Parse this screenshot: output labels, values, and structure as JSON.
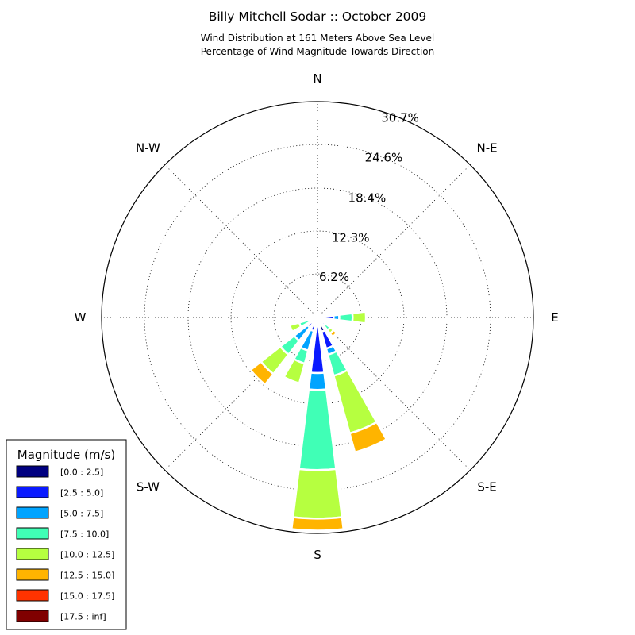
{
  "chart_data": {
    "type": "windrose",
    "title": "Billy Mitchell Sodar :: October 2009",
    "subtitle_line1": "Wind Distribution at 161 Meters Above Sea Level",
    "subtitle_line2": "Percentage of Wind Magnitude Towards Direction",
    "direction_labels": [
      "N",
      "N-E",
      "E",
      "S-E",
      "S",
      "S-W",
      "W",
      "N-W"
    ],
    "radial_max": 30.7,
    "radial_ticks": [
      {
        "value": 6.2,
        "label": "6.2%"
      },
      {
        "value": 12.3,
        "label": "12.3%"
      },
      {
        "value": 18.4,
        "label": "18.4%"
      },
      {
        "value": 24.6,
        "label": "24.6%"
      },
      {
        "value": 30.7,
        "label": "30.7%"
      }
    ],
    "legend_title": "Magnitude (m/s)",
    "bins": [
      {
        "label": "[0.0 : 2.5]",
        "color": "#000080"
      },
      {
        "label": "[2.5 : 5.0]",
        "color": "#0a1aff"
      },
      {
        "label": "[5.0 : 7.5]",
        "color": "#00a4ff"
      },
      {
        "label": "[7.5 : 10.0]",
        "color": "#40ffb6"
      },
      {
        "label": "[10.0 : 12.5]",
        "color": "#b6ff40"
      },
      {
        "label": "[12.5 : 15.0]",
        "color": "#ffb400"
      },
      {
        "label": "[15.0 : 17.5]",
        "color": "#ff3300"
      },
      {
        "label": "[17.5 : inf]",
        "color": "#800000"
      }
    ],
    "directions_deg": [
      0,
      22.5,
      45,
      67.5,
      90,
      112.5,
      135,
      157.5,
      180,
      202.5,
      225,
      247.5,
      270,
      292.5,
      315,
      337.5
    ],
    "cumulative_percent": [
      [
        0.2,
        0.3,
        0.3,
        0.3,
        0.3,
        0.3,
        0.3,
        0.3
      ],
      [
        0.2,
        0.3,
        0.3,
        0.3,
        0.3,
        0.3,
        0.3,
        0.3
      ],
      [
        0.3,
        0.6,
        0.6,
        0.6,
        0.6,
        0.6,
        0.6,
        0.6
      ],
      [
        0.5,
        1.0,
        1.1,
        1.2,
        1.3,
        1.3,
        1.3,
        1.3
      ],
      [
        0.6,
        2.3,
        3.1,
        5.0,
        6.9,
        6.9,
        6.9,
        6.9
      ],
      [
        0.5,
        1.0,
        1.3,
        1.6,
        1.9,
        2.0,
        2.0,
        2.0
      ],
      [
        0.5,
        1.4,
        1.5,
        2.3,
        2.9,
        3.5,
        3.6,
        3.6
      ],
      [
        2.1,
        4.6,
        5.5,
        8.6,
        17.1,
        19.9,
        19.9,
        19.9
      ],
      [
        1.3,
        7.9,
        10.3,
        21.7,
        28.6,
        30.3,
        30.3,
        30.3
      ],
      [
        0.8,
        2.0,
        4.9,
        6.8,
        9.7,
        9.7,
        9.7,
        9.7
      ],
      [
        0.7,
        1.8,
        4.2,
        6.7,
        10.2,
        12.1,
        12.1,
        12.1
      ],
      [
        0.4,
        0.9,
        1.1,
        2.7,
        4.1,
        4.1,
        4.1,
        4.1
      ],
      [
        0.3,
        0.8,
        1.1,
        1.3,
        1.5,
        1.6,
        1.6,
        1.6
      ],
      [
        0.4,
        0.9,
        1.3,
        1.4,
        1.4,
        1.4,
        1.4,
        1.4
      ],
      [
        0.3,
        0.5,
        0.6,
        0.6,
        0.6,
        0.6,
        0.6,
        0.6
      ],
      [
        0.2,
        0.2,
        0.2,
        0.2,
        0.2,
        0.2,
        0.2,
        0.2
      ]
    ],
    "grid": true,
    "legend_position": "bottom-left"
  }
}
